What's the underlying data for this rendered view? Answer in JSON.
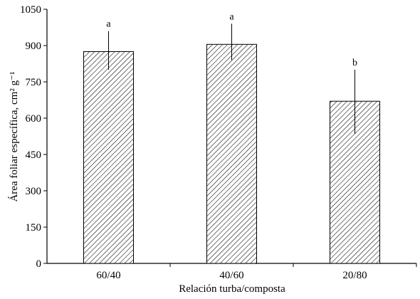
{
  "chart_data": {
    "type": "bar",
    "categories": [
      "60/40",
      "40/60",
      "20/80"
    ],
    "values": [
      875,
      905,
      670
    ],
    "error_bars": [
      {
        "low": 800,
        "high": 960
      },
      {
        "low": 840,
        "high": 990
      },
      {
        "low": 535,
        "high": 800
      }
    ],
    "significance_labels": [
      "a",
      "a",
      "b"
    ],
    "xlabel": "Relación turba/composta",
    "ylabel": "Área foliar específica, cm² g⁻¹",
    "ylim": [
      0,
      1050
    ],
    "yticks": [
      0,
      150,
      300,
      450,
      600,
      750,
      900,
      1050
    ],
    "grid": false,
    "bar_fill": "diagonal-hatch",
    "colors": {
      "bar_stroke": "#000000",
      "hatch": "#000000",
      "background": "#ffffff"
    }
  }
}
